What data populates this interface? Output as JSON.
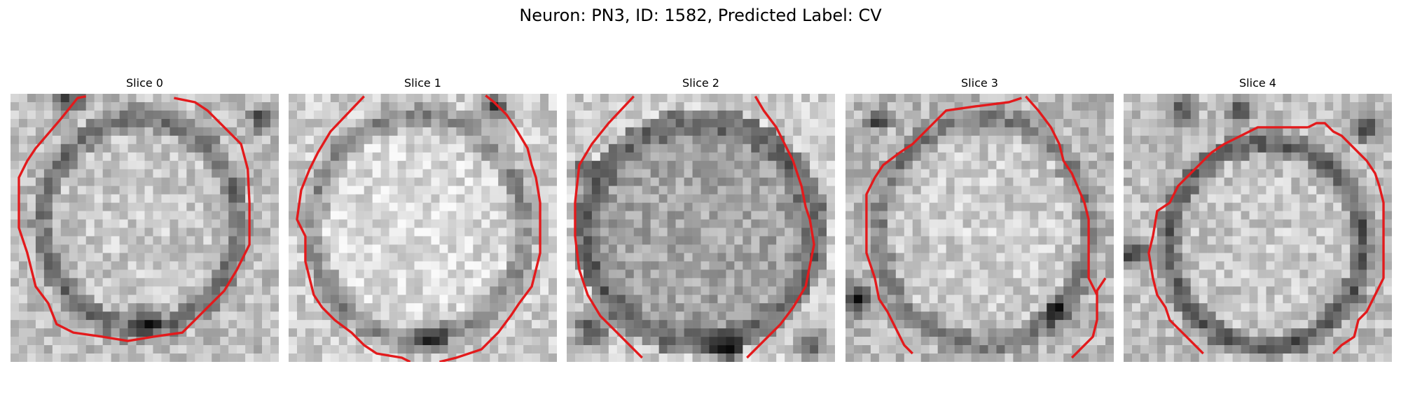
{
  "figure": {
    "title": "Neuron: PN3, ID: 1582, Predicted Label: CV"
  },
  "colors": {
    "contour": "#e31a1c",
    "background": "#ffffff"
  },
  "panels": [
    {
      "title": "Slice 0"
    },
    {
      "title": "Slice 1"
    },
    {
      "title": "Slice 2"
    },
    {
      "title": "Slice 3"
    },
    {
      "title": "Slice 4"
    }
  ]
}
